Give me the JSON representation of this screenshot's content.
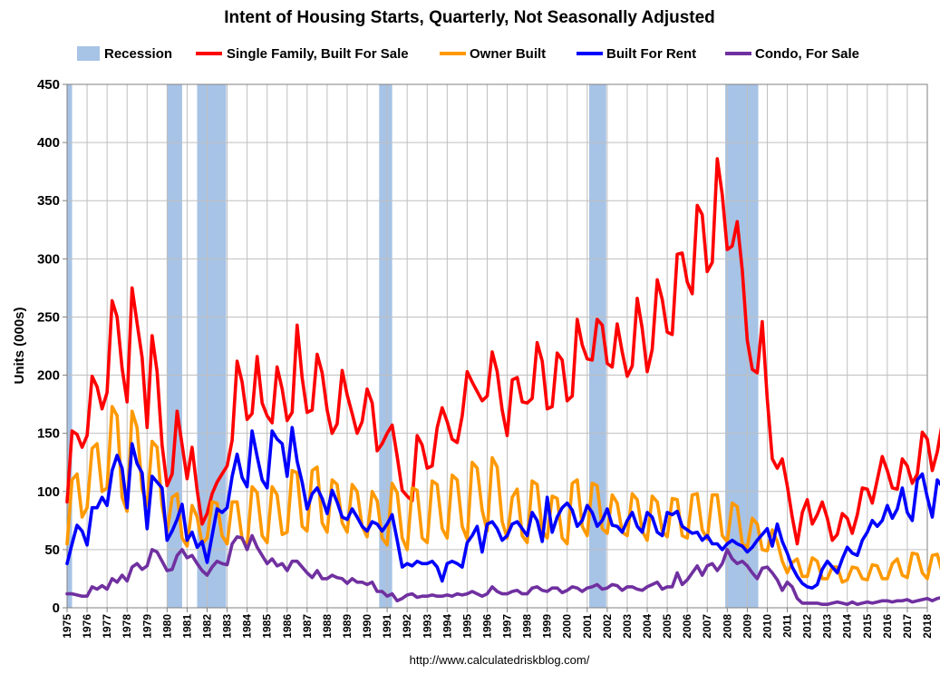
{
  "chart_data": {
    "type": "line",
    "title": "Intent of Housing Starts, Quarterly, Not Seasonally Adjusted",
    "ylabel": "Units  (000s)",
    "xlabel": "",
    "source": "http://www.calculatedriskblog.com/",
    "ylim": [
      0,
      450
    ],
    "yticks": [
      0,
      50,
      100,
      150,
      200,
      250,
      300,
      350,
      400,
      450
    ],
    "xlim": [
      1975,
      2018
    ],
    "xticks": [
      "1975",
      "1976",
      "1977",
      "1978",
      "1979",
      "1980",
      "1981",
      "1982",
      "1983",
      "1984",
      "1985",
      "1986",
      "1987",
      "1988",
      "1989",
      "1990",
      "1991",
      "1992",
      "1993",
      "1994",
      "1995",
      "1996",
      "1997",
      "1998",
      "1999",
      "2000",
      "2001",
      "2002",
      "2003",
      "2004",
      "2005",
      "2006",
      "2007",
      "2008",
      "2009",
      "2010",
      "2011",
      "2012",
      "2013",
      "2014",
      "2015",
      "2016",
      "2017",
      "2018"
    ],
    "recessions": [
      {
        "start": 1975.0,
        "end": 1975.25
      },
      {
        "start": 1980.0,
        "end": 1980.75
      },
      {
        "start": 1981.5,
        "end": 1982.95
      },
      {
        "start": 1990.6,
        "end": 1991.25
      },
      {
        "start": 2001.1,
        "end": 2001.95
      },
      {
        "start": 2007.9,
        "end": 2009.55
      }
    ],
    "legend": {
      "recession_label": "Recession",
      "recession_color": "#a7c3e6"
    },
    "series": [
      {
        "name": "Single Family, Built For Sale",
        "color": "#ff0000",
        "values": [
          91,
          152,
          149,
          138,
          148,
          199,
          190,
          171,
          185,
          264,
          250,
          206,
          177,
          275,
          245,
          215,
          155,
          234,
          203,
          140,
          105,
          115,
          169,
          140,
          111,
          138,
          101,
          72,
          81,
          98,
          108,
          115,
          122,
          144,
          212,
          194,
          162,
          167,
          216,
          176,
          165,
          159,
          207,
          188,
          161,
          168,
          243,
          198,
          168,
          170,
          218,
          202,
          170,
          150,
          158,
          204,
          183,
          167,
          150,
          160,
          188,
          176,
          135,
          141,
          150,
          157,
          130,
          101,
          96,
          92,
          148,
          140,
          120,
          122,
          155,
          172,
          160,
          145,
          142,
          165,
          203,
          194,
          186,
          178,
          182,
          220,
          203,
          170,
          148,
          196,
          198,
          177,
          176,
          180,
          228,
          212,
          171,
          173,
          219,
          213,
          178,
          182,
          248,
          226,
          214,
          213,
          248,
          243,
          210,
          207,
          244,
          220,
          199,
          208,
          266,
          240,
          203,
          222,
          282,
          265,
          237,
          235,
          304,
          305,
          280,
          270,
          346,
          338,
          289,
          297,
          386,
          355,
          308,
          311,
          332,
          290,
          230,
          205,
          202,
          246,
          180,
          128,
          120,
          128,
          105,
          78,
          55,
          82,
          93,
          72,
          80,
          91,
          77,
          58,
          63,
          81,
          77,
          64,
          80,
          103,
          102,
          90,
          110,
          130,
          118,
          103,
          102,
          128,
          122,
          107,
          115,
          151,
          145,
          118,
          134,
          159,
          150,
          138
        ]
      },
      {
        "name": "Owner Built",
        "color": "#ff9900",
        "values": [
          55,
          110,
          115,
          78,
          86,
          137,
          141,
          100,
          103,
          173,
          165,
          95,
          83,
          169,
          155,
          102,
          88,
          143,
          138,
          88,
          65,
          95,
          98,
          60,
          53,
          88,
          78,
          55,
          60,
          91,
          90,
          62,
          55,
          91,
          91,
          59,
          53,
          104,
          99,
          62,
          56,
          104,
          97,
          63,
          65,
          118,
          116,
          70,
          66,
          118,
          121,
          73,
          65,
          110,
          106,
          73,
          65,
          106,
          100,
          70,
          61,
          100,
          92,
          60,
          54,
          107,
          99,
          60,
          50,
          103,
          101,
          60,
          56,
          109,
          106,
          68,
          60,
          114,
          110,
          70,
          59,
          125,
          120,
          84,
          66,
          129,
          121,
          74,
          60,
          95,
          102,
          62,
          56,
          109,
          106,
          66,
          60,
          96,
          94,
          60,
          55,
          107,
          110,
          70,
          62,
          107,
          105,
          68,
          64,
          97,
          90,
          65,
          62,
          98,
          93,
          66,
          58,
          96,
          91,
          66,
          61,
          94,
          93,
          62,
          60,
          97,
          98,
          67,
          59,
          97,
          97,
          62,
          57,
          90,
          87,
          55,
          52,
          77,
          72,
          50,
          49,
          67,
          57,
          40,
          30,
          39,
          42,
          27,
          27,
          43,
          40,
          25,
          25,
          35,
          35,
          22,
          24,
          35,
          34,
          25,
          24,
          37,
          36,
          25,
          25,
          38,
          42,
          28,
          26,
          47,
          46,
          30,
          25,
          45,
          46,
          30,
          33,
          48,
          49,
          40
        ]
      },
      {
        "name": "Built For Rent",
        "color": "#0000ff",
        "values": [
          38,
          55,
          71,
          66,
          54,
          86,
          86,
          95,
          88,
          118,
          131,
          120,
          86,
          141,
          124,
          116,
          68,
          113,
          108,
          103,
          58,
          66,
          76,
          89,
          58,
          65,
          52,
          57,
          39,
          62,
          85,
          82,
          86,
          113,
          132,
          112,
          104,
          152,
          130,
          110,
          103,
          152,
          145,
          141,
          113,
          155,
          126,
          108,
          85,
          98,
          103,
          94,
          81,
          101,
          91,
          78,
          76,
          85,
          78,
          70,
          66,
          74,
          72,
          66,
          72,
          80,
          58,
          35,
          38,
          36,
          40,
          38,
          38,
          40,
          35,
          23,
          38,
          40,
          38,
          35,
          56,
          62,
          70,
          48,
          72,
          74,
          68,
          58,
          62,
          72,
          74,
          68,
          62,
          82,
          75,
          57,
          95,
          65,
          78,
          86,
          90,
          84,
          70,
          75,
          88,
          82,
          70,
          75,
          85,
          71,
          70,
          65,
          75,
          82,
          70,
          65,
          82,
          78,
          65,
          62,
          82,
          80,
          83,
          70,
          67,
          64,
          65,
          58,
          62,
          55,
          55,
          50,
          55,
          58,
          55,
          53,
          48,
          52,
          58,
          63,
          68,
          53,
          72,
          57,
          47,
          35,
          27,
          21,
          18,
          17,
          20,
          33,
          40,
          35,
          30,
          42,
          52,
          47,
          45,
          58,
          65,
          75,
          70,
          75,
          88,
          77,
          85,
          103,
          82,
          75,
          110,
          115,
          95,
          78,
          110,
          104,
          103,
          103
        ]
      },
      {
        "name": "Condo, For Sale",
        "color": "#7030a0",
        "values": [
          12,
          12,
          11,
          10,
          10,
          18,
          16,
          19,
          16,
          25,
          22,
          28,
          23,
          35,
          38,
          33,
          36,
          50,
          48,
          40,
          32,
          33,
          45,
          50,
          43,
          45,
          38,
          32,
          28,
          35,
          40,
          38,
          37,
          55,
          61,
          60,
          50,
          62,
          52,
          45,
          38,
          42,
          36,
          38,
          32,
          40,
          40,
          35,
          30,
          26,
          32,
          25,
          25,
          28,
          26,
          25,
          21,
          25,
          22,
          22,
          20,
          22,
          14,
          14,
          10,
          12,
          6,
          8,
          11,
          12,
          9,
          10,
          10,
          11,
          10,
          10,
          11,
          10,
          12,
          11,
          12,
          14,
          12,
          10,
          12,
          18,
          14,
          12,
          12,
          14,
          15,
          12,
          12,
          17,
          18,
          15,
          14,
          17,
          17,
          13,
          15,
          18,
          17,
          14,
          17,
          18,
          20,
          16,
          17,
          20,
          19,
          15,
          18,
          18,
          16,
          15,
          18,
          20,
          22,
          16,
          18,
          18,
          30,
          20,
          24,
          30,
          36,
          28,
          36,
          38,
          32,
          38,
          50,
          42,
          38,
          40,
          36,
          30,
          25,
          34,
          35,
          30,
          24,
          15,
          22,
          18,
          8,
          4,
          4,
          4,
          4,
          3,
          3,
          4,
          5,
          4,
          3,
          5,
          3,
          4,
          5,
          4,
          5,
          6,
          6,
          5,
          6,
          6,
          7,
          5,
          6,
          7,
          8,
          6,
          8,
          9,
          8,
          4,
          7,
          8,
          9,
          6
        ]
      }
    ]
  }
}
